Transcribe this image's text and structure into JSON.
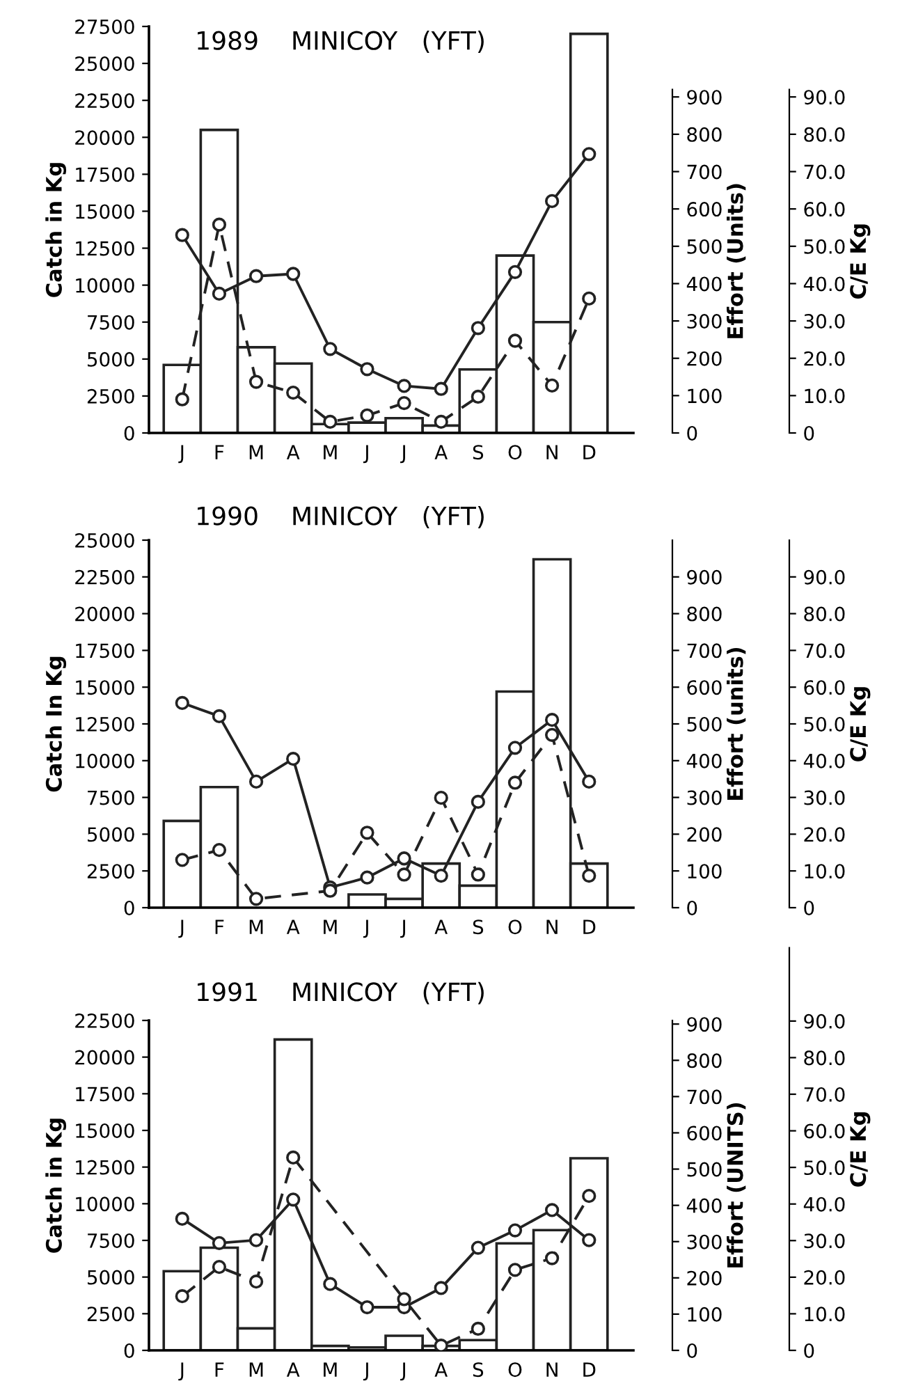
{
  "chart_data": [
    {
      "type": "bar",
      "title": "1989    MINICOY   (YFT)",
      "ylabel": "Catch in Kg",
      "y2label": "Effort (Units)",
      "y3label": "C/E Kg",
      "categories": [
        "J",
        "F",
        "M",
        "A",
        "M",
        "J",
        "J",
        "A",
        "S",
        "O",
        "N",
        "D"
      ],
      "series": [
        {
          "type": "bar",
          "color": "#ffffff",
          "values": [
            4600,
            20500,
            5800,
            4700,
            600,
            700,
            1000,
            500,
            4300,
            12000,
            7500,
            27000
          ]
        },
        {
          "type": "line",
          "axis": "y2",
          "color": "#222222",
          "marker": "circle",
          "line_style": "solid",
          "values": [
            530,
            373,
            420,
            426,
            225,
            171,
            126,
            118,
            281,
            431,
            621,
            747
          ]
        },
        {
          "type": "line",
          "axis": "y3",
          "color": "#222222",
          "marker": "circle",
          "line_style": "dashed",
          "values": [
            9.0,
            55.8,
            13.7,
            10.8,
            3.0,
            4.7,
            8.0,
            3.0,
            9.7,
            24.7,
            12.7,
            36.0
          ]
        }
      ],
      "ylim": [
        0,
        27500
      ],
      "yticks": [
        0,
        2500,
        5000,
        7500,
        10000,
        12500,
        15000,
        17500,
        20000,
        22500,
        25000,
        27500
      ],
      "y2lim": [
        0,
        920
      ],
      "y2ticks": [
        0,
        100,
        200,
        300,
        400,
        500,
        600,
        700,
        800,
        900
      ],
      "y3lim": [
        0,
        92
      ],
      "y3ticks": [
        0,
        {
          "value": 10,
          "label": "10.0"
        },
        {
          "value": 20,
          "label": "20.0"
        },
        {
          "value": 30,
          "label": "30.0"
        },
        {
          "value": 40,
          "label": "40.0"
        },
        {
          "value": 50,
          "label": "50.0"
        },
        {
          "value": 60,
          "label": "60.0"
        },
        {
          "value": 70,
          "label": "70.0"
        },
        {
          "value": 80,
          "label": "80.0"
        },
        {
          "value": 90,
          "label": "90.0"
        }
      ],
      "grid": false,
      "legend": false
    },
    {
      "type": "bar",
      "title": "1990    MINICOY   (YFT)",
      "ylabel": "Catch In Kg",
      "y2label": "Effort (units)",
      "y3label": "C/E Kg",
      "categories": [
        "J",
        "F",
        "M",
        "A",
        "M",
        "J",
        "J",
        "A",
        "S",
        "O",
        "N",
        "D"
      ],
      "series": [
        {
          "type": "bar",
          "color": "#ffffff",
          "values": [
            5900,
            8200,
            0,
            0,
            0,
            900,
            600,
            3000,
            1500,
            14700,
            23700,
            3000
          ]
        },
        {
          "type": "line",
          "axis": "y2",
          "color": "#222222",
          "marker": "circle",
          "line_style": "solid",
          "values": [
            557,
            521,
            343,
            405,
            55,
            82,
            134,
            87,
            288,
            435,
            511,
            343
          ]
        },
        {
          "type": "line",
          "axis": "y3",
          "color": "#222222",
          "marker": "circle",
          "line_style": "dashed",
          "values": [
            13.0,
            15.7,
            2.4,
            null,
            4.6,
            20.4,
            9.0,
            29.9,
            9.0,
            34.0,
            47.0,
            8.7
          ]
        }
      ],
      "ylim": [
        0,
        25000
      ],
      "yticks": [
        0,
        2500,
        5000,
        7500,
        10000,
        12500,
        15000,
        17500,
        20000,
        22500,
        25000
      ],
      "y2lim": [
        0,
        1000
      ],
      "y2ticks": [
        0,
        100,
        200,
        300,
        400,
        500,
        600,
        700,
        800,
        900
      ],
      "y3lim": [
        0,
        100
      ],
      "y3ticks": [
        0,
        {
          "value": 10,
          "label": "10.0"
        },
        {
          "value": 20,
          "label": "20.0"
        },
        {
          "value": 30,
          "label": "30.0"
        },
        {
          "value": 40,
          "label": "40.0"
        },
        {
          "value": 50,
          "label": "50.0"
        },
        {
          "value": 60,
          "label": "60.0"
        },
        {
          "value": 70,
          "label": "70.0"
        },
        {
          "value": 80,
          "label": "80.0"
        },
        {
          "value": 90,
          "label": "90.0"
        }
      ],
      "grid": false,
      "legend": false
    },
    {
      "type": "bar",
      "title": "1991    MINICOY   (YFT)",
      "ylabel": "Catch in Kg",
      "y2label": "Effort (UNITS)",
      "y3label": "C/E Kg",
      "categories": [
        "J",
        "F",
        "M",
        "A",
        "M",
        "J",
        "J",
        "A",
        "S",
        "O",
        "N",
        "D"
      ],
      "series": [
        {
          "type": "bar",
          "color": "#ffffff",
          "values": [
            5400,
            7000,
            1500,
            21200,
            300,
            200,
            1000,
            300,
            700,
            7300,
            8200,
            13100
          ]
        },
        {
          "type": "line",
          "axis": "y2",
          "color": "#222222",
          "marker": "circle",
          "line_style": "solid",
          "values": [
            363,
            296,
            304,
            416,
            183,
            119,
            119,
            172,
            283,
            331,
            387,
            304
          ]
        },
        {
          "type": "line",
          "axis": "y3",
          "color": "#222222",
          "marker": "circle",
          "line_style": "dashed",
          "values": [
            14.8,
            22.8,
            18.8,
            52.7,
            null,
            null,
            14.0,
            1.3,
            5.9,
            22.0,
            25.2,
            42.2
          ]
        }
      ],
      "ylim": [
        0,
        22500
      ],
      "yticks": [
        0,
        2500,
        5000,
        7500,
        10000,
        12500,
        15000,
        17500,
        20000,
        22500
      ],
      "y2lim": [
        0,
        910
      ],
      "y2ticks": [
        0,
        100,
        200,
        300,
        400,
        500,
        600,
        700,
        800,
        900
      ],
      "y3lim": [
        0,
        110
      ],
      "y3ticks": [
        0,
        {
          "value": 10,
          "label": "10.0"
        },
        {
          "value": 20,
          "label": "20.0"
        },
        {
          "value": 30,
          "label": "30.0"
        },
        {
          "value": 40,
          "label": "40.0"
        },
        {
          "value": 50,
          "label": "50.0"
        },
        {
          "value": 60,
          "label": "60.0"
        },
        {
          "value": 70,
          "label": "70.0"
        },
        {
          "value": 80,
          "label": "80.0"
        },
        {
          "value": 90,
          "label": "90.0"
        }
      ],
      "grid": false,
      "legend": false
    }
  ]
}
